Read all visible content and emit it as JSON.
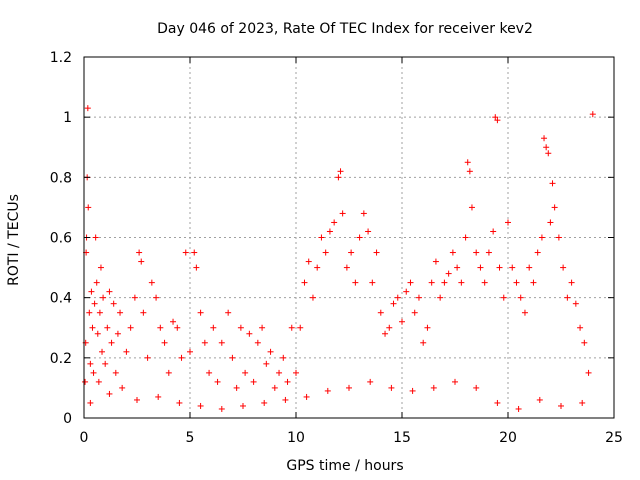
{
  "chart_data": {
    "type": "scatter",
    "title": "Day 046 of 2023, Rate Of TEC Index for receiver kev2",
    "xlabel": "GPS time / hours",
    "ylabel": "ROTI / TECUs",
    "xlim": [
      0,
      25
    ],
    "ylim": [
      0,
      1.2
    ],
    "xticks": [
      "0",
      "5",
      "10",
      "15",
      "20",
      "25"
    ],
    "yticks": [
      "0",
      "0.2",
      "0.4",
      "0.6",
      "0.8",
      "1",
      "1.2"
    ],
    "grid": true,
    "marker": "+",
    "marker_color": "#ff0000",
    "series": [
      {
        "points": [
          [
            0.05,
            0.12
          ],
          [
            0.08,
            0.25
          ],
          [
            0.1,
            0.55
          ],
          [
            0.12,
            0.6
          ],
          [
            0.15,
            0.8
          ],
          [
            0.18,
            1.03
          ],
          [
            0.2,
            0.7
          ],
          [
            0.25,
            0.35
          ],
          [
            0.3,
            0.18
          ],
          [
            0.35,
            0.42
          ],
          [
            0.4,
            0.3
          ],
          [
            0.45,
            0.15
          ],
          [
            0.5,
            0.38
          ],
          [
            0.55,
            0.6
          ],
          [
            0.6,
            0.45
          ],
          [
            0.65,
            0.28
          ],
          [
            0.7,
            0.12
          ],
          [
            0.75,
            0.35
          ],
          [
            0.8,
            0.5
          ],
          [
            0.85,
            0.22
          ],
          [
            0.9,
            0.4
          ],
          [
            1.0,
            0.18
          ],
          [
            1.1,
            0.3
          ],
          [
            1.2,
            0.42
          ],
          [
            1.3,
            0.25
          ],
          [
            1.4,
            0.38
          ],
          [
            1.5,
            0.15
          ],
          [
            1.6,
            0.28
          ],
          [
            1.7,
            0.35
          ],
          [
            1.8,
            0.1
          ],
          [
            2.0,
            0.22
          ],
          [
            2.2,
            0.3
          ],
          [
            2.4,
            0.4
          ],
          [
            2.6,
            0.55
          ],
          [
            2.7,
            0.52
          ],
          [
            2.8,
            0.35
          ],
          [
            3.0,
            0.2
          ],
          [
            3.2,
            0.45
          ],
          [
            3.4,
            0.4
          ],
          [
            3.6,
            0.3
          ],
          [
            3.8,
            0.25
          ],
          [
            4.0,
            0.15
          ],
          [
            4.2,
            0.32
          ],
          [
            4.4,
            0.3
          ],
          [
            4.6,
            0.2
          ],
          [
            4.8,
            0.55
          ],
          [
            5.0,
            0.22
          ],
          [
            5.2,
            0.55
          ],
          [
            5.3,
            0.5
          ],
          [
            5.5,
            0.35
          ],
          [
            5.7,
            0.25
          ],
          [
            5.9,
            0.15
          ],
          [
            6.1,
            0.3
          ],
          [
            6.3,
            0.12
          ],
          [
            6.5,
            0.25
          ],
          [
            6.8,
            0.35
          ],
          [
            7.0,
            0.2
          ],
          [
            7.2,
            0.1
          ],
          [
            7.4,
            0.3
          ],
          [
            7.6,
            0.15
          ],
          [
            7.8,
            0.28
          ],
          [
            8.0,
            0.12
          ],
          [
            8.2,
            0.25
          ],
          [
            8.4,
            0.3
          ],
          [
            8.6,
            0.18
          ],
          [
            8.8,
            0.22
          ],
          [
            9.0,
            0.1
          ],
          [
            9.2,
            0.15
          ],
          [
            9.4,
            0.2
          ],
          [
            9.6,
            0.12
          ],
          [
            9.8,
            0.3
          ],
          [
            10.0,
            0.15
          ],
          [
            10.2,
            0.3
          ],
          [
            10.4,
            0.45
          ],
          [
            10.6,
            0.52
          ],
          [
            10.8,
            0.4
          ],
          [
            11.0,
            0.5
          ],
          [
            11.2,
            0.6
          ],
          [
            11.4,
            0.55
          ],
          [
            11.6,
            0.62
          ],
          [
            11.8,
            0.65
          ],
          [
            12.0,
            0.8
          ],
          [
            12.1,
            0.82
          ],
          [
            12.2,
            0.68
          ],
          [
            12.4,
            0.5
          ],
          [
            12.6,
            0.55
          ],
          [
            12.8,
            0.45
          ],
          [
            13.0,
            0.6
          ],
          [
            13.2,
            0.68
          ],
          [
            13.4,
            0.62
          ],
          [
            13.6,
            0.45
          ],
          [
            13.8,
            0.55
          ],
          [
            14.0,
            0.35
          ],
          [
            14.2,
            0.28
          ],
          [
            14.4,
            0.3
          ],
          [
            14.6,
            0.38
          ],
          [
            14.8,
            0.4
          ],
          [
            15.0,
            0.32
          ],
          [
            15.2,
            0.42
          ],
          [
            15.4,
            0.45
          ],
          [
            15.6,
            0.35
          ],
          [
            15.8,
            0.4
          ],
          [
            16.0,
            0.25
          ],
          [
            16.2,
            0.3
          ],
          [
            16.4,
            0.45
          ],
          [
            16.6,
            0.52
          ],
          [
            16.8,
            0.4
          ],
          [
            17.0,
            0.45
          ],
          [
            17.2,
            0.48
          ],
          [
            17.4,
            0.55
          ],
          [
            17.6,
            0.5
          ],
          [
            17.8,
            0.45
          ],
          [
            18.0,
            0.6
          ],
          [
            18.1,
            0.85
          ],
          [
            18.2,
            0.82
          ],
          [
            18.3,
            0.7
          ],
          [
            18.5,
            0.55
          ],
          [
            18.7,
            0.5
          ],
          [
            18.9,
            0.45
          ],
          [
            19.1,
            0.55
          ],
          [
            19.3,
            0.62
          ],
          [
            19.4,
            1.0
          ],
          [
            19.5,
            0.99
          ],
          [
            19.6,
            0.5
          ],
          [
            19.8,
            0.4
          ],
          [
            20.0,
            0.65
          ],
          [
            20.2,
            0.5
          ],
          [
            20.4,
            0.45
          ],
          [
            20.6,
            0.4
          ],
          [
            20.8,
            0.35
          ],
          [
            21.0,
            0.5
          ],
          [
            21.2,
            0.45
          ],
          [
            21.4,
            0.55
          ],
          [
            21.6,
            0.6
          ],
          [
            21.7,
            0.93
          ],
          [
            21.8,
            0.9
          ],
          [
            21.9,
            0.88
          ],
          [
            22.0,
            0.65
          ],
          [
            22.1,
            0.78
          ],
          [
            22.2,
            0.7
          ],
          [
            22.4,
            0.6
          ],
          [
            22.6,
            0.5
          ],
          [
            22.8,
            0.4
          ],
          [
            23.0,
            0.45
          ],
          [
            23.2,
            0.38
          ],
          [
            23.4,
            0.3
          ],
          [
            23.6,
            0.25
          ],
          [
            23.8,
            0.15
          ],
          [
            24.0,
            1.01
          ],
          [
            0.3,
            0.05
          ],
          [
            1.2,
            0.08
          ],
          [
            2.5,
            0.06
          ],
          [
            3.5,
            0.07
          ],
          [
            4.5,
            0.05
          ],
          [
            5.5,
            0.04
          ],
          [
            6.5,
            0.03
          ],
          [
            7.5,
            0.04
          ],
          [
            8.5,
            0.05
          ],
          [
            9.5,
            0.06
          ],
          [
            10.5,
            0.07
          ],
          [
            11.5,
            0.09
          ],
          [
            12.5,
            0.1
          ],
          [
            13.5,
            0.12
          ],
          [
            14.5,
            0.1
          ],
          [
            15.5,
            0.09
          ],
          [
            16.5,
            0.1
          ],
          [
            17.5,
            0.12
          ],
          [
            18.5,
            0.1
          ],
          [
            19.5,
            0.05
          ],
          [
            20.5,
            0.03
          ],
          [
            21.5,
            0.06
          ],
          [
            22.5,
            0.04
          ],
          [
            23.5,
            0.05
          ]
        ]
      }
    ]
  }
}
